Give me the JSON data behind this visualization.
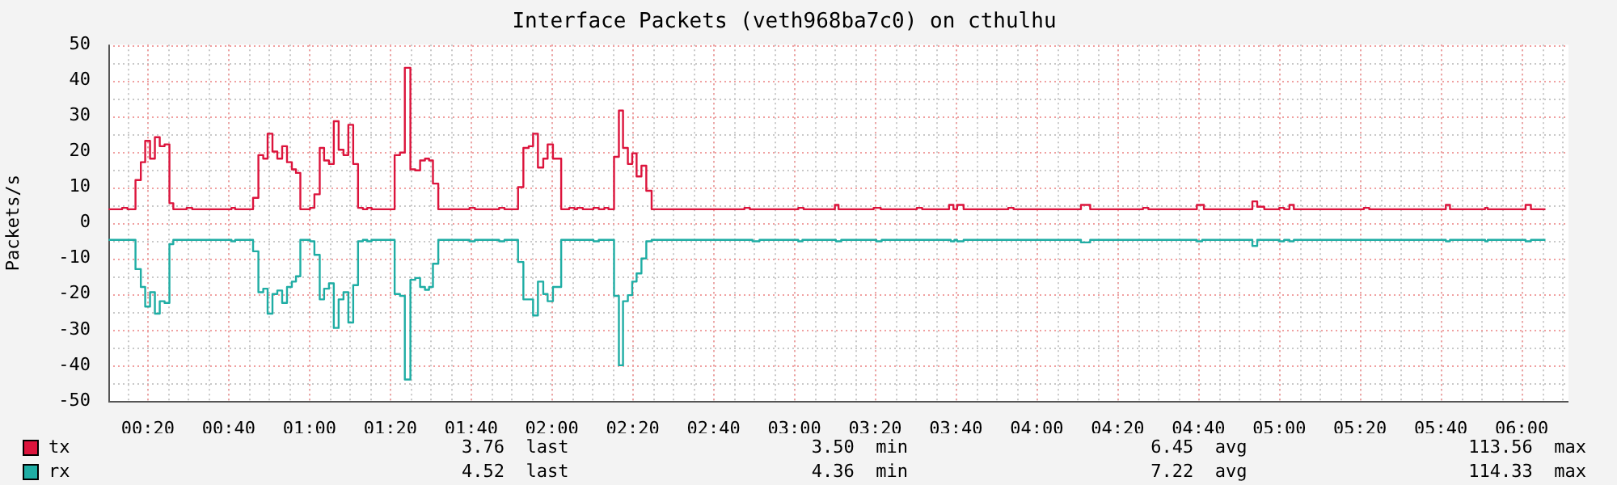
{
  "chart_data": {
    "type": "step",
    "title": "Interface Packets (veth968ba7c0) on cthulhu",
    "ylabel": "Packets/s",
    "xlim": [
      0.17,
      6.193
    ],
    "xticks": [
      {
        "value": 0.3333,
        "label": "00:20"
      },
      {
        "value": 0.6667,
        "label": "00:40"
      },
      {
        "value": 1,
        "label": "01:00"
      },
      {
        "value": 1.3333,
        "label": "01:20"
      },
      {
        "value": 1.6667,
        "label": "01:40"
      },
      {
        "value": 2,
        "label": "02:00"
      },
      {
        "value": 2.3333,
        "label": "02:20"
      },
      {
        "value": 2.6667,
        "label": "02:40"
      },
      {
        "value": 3,
        "label": "03:00"
      },
      {
        "value": 3.3333,
        "label": "03:20"
      },
      {
        "value": 3.6667,
        "label": "03:40"
      },
      {
        "value": 4,
        "label": "04:00"
      },
      {
        "value": 4.3333,
        "label": "04:20"
      },
      {
        "value": 4.6667,
        "label": "04:40"
      },
      {
        "value": 5,
        "label": "05:00"
      },
      {
        "value": 5.3333,
        "label": "05:20"
      },
      {
        "value": 5.6667,
        "label": "05:40"
      },
      {
        "value": 6,
        "label": "06:00"
      }
    ],
    "ylim": [
      -50,
      50
    ],
    "yticks": [
      -50,
      -40,
      -30,
      -20,
      -10,
      0,
      10,
      20,
      30,
      40,
      50
    ],
    "grid": true,
    "legend": "bottom",
    "series": [
      {
        "name": "tx",
        "color": "#dc143c",
        "x": [
          0.171,
          0.227,
          0.249,
          0.282,
          0.304,
          0.322,
          0.342,
          0.362,
          0.382,
          0.402,
          0.422,
          0.438,
          0.493,
          0.516,
          0.678,
          0.693,
          0.767,
          0.789,
          0.809,
          0.827,
          0.847,
          0.867,
          0.887,
          0.907,
          0.927,
          0.944,
          0.962,
          1.002,
          1.02,
          1.042,
          1.06,
          1.08,
          1.1,
          1.12,
          1.14,
          1.16,
          1.18,
          1.2,
          1.22,
          1.238,
          1.256,
          1.351,
          1.373,
          1.393,
          1.416,
          1.436,
          1.456,
          1.476,
          1.493,
          1.509,
          1.531,
          1.66,
          1.682,
          1.782,
          1.804,
          1.86,
          1.882,
          1.904,
          1.922,
          1.942,
          1.964,
          1.982,
          2.004,
          2.038,
          2.071,
          2.093,
          2.104,
          2.127,
          2.171,
          2.193,
          2.216,
          2.233,
          2.256,
          2.276,
          2.293,
          2.313,
          2.331,
          2.349,
          2.369,
          2.389,
          2.411,
          2.794,
          2.816,
          3.016,
          3.038,
          3.167,
          3.182,
          3.327,
          3.356,
          3.505,
          3.527,
          3.638,
          3.656,
          3.671,
          3.698,
          3.882,
          3.904,
          4.182,
          4.22,
          4.438,
          4.46,
          4.66,
          4.689,
          4.889,
          4.909,
          4.938,
          5.0,
          5.02,
          5.042,
          5.06,
          5.349,
          5.371,
          5.687,
          5.704,
          5.849,
          5.86,
          6.016,
          6.038,
          6.098
        ],
        "values": [
          3.8,
          4.2,
          3.8,
          12,
          17,
          23,
          18,
          24,
          21.5,
          22,
          5.5,
          3.8,
          4.2,
          3.8,
          4.2,
          3.8,
          7,
          19,
          18,
          25,
          20,
          18,
          21.5,
          17,
          15,
          14,
          3.8,
          4.2,
          8,
          21,
          17.5,
          16.5,
          28.5,
          20.5,
          19,
          27.5,
          16.5,
          4.2,
          3.8,
          4.2,
          3.8,
          19,
          19.7,
          43.5,
          15,
          14.7,
          17.5,
          18,
          17.5,
          11,
          3.8,
          4.2,
          3.8,
          4.2,
          3.8,
          10,
          21,
          21.5,
          25,
          15.5,
          18,
          22,
          18,
          3.8,
          4.2,
          3.8,
          4.2,
          3.8,
          4.2,
          3.8,
          4.2,
          3.8,
          18.5,
          31.5,
          21,
          16.5,
          19.5,
          13,
          16,
          9,
          3.8,
          4.2,
          3.8,
          4.2,
          3.8,
          5,
          3.8,
          4.2,
          3.8,
          4.2,
          3.8,
          5,
          3.8,
          5,
          3.8,
          4.2,
          3.8,
          5,
          3.8,
          4.2,
          3.8,
          5,
          3.8,
          6,
          4.5,
          3.8,
          4.2,
          3.8,
          5,
          3.8,
          4.2,
          3.8,
          5,
          3.8,
          4.2,
          3.8,
          5,
          3.8,
          3.8
        ]
      },
      {
        "name": "rx",
        "color": "#1fada4",
        "x": [
          0.171,
          0.282,
          0.304,
          0.322,
          0.342,
          0.362,
          0.382,
          0.402,
          0.422,
          0.438,
          0.678,
          0.693,
          0.767,
          0.789,
          0.809,
          0.827,
          0.847,
          0.867,
          0.887,
          0.907,
          0.927,
          0.944,
          0.962,
          1.002,
          1.02,
          1.042,
          1.06,
          1.08,
          1.1,
          1.12,
          1.14,
          1.16,
          1.18,
          1.2,
          1.22,
          1.238,
          1.256,
          1.351,
          1.373,
          1.393,
          1.416,
          1.436,
          1.456,
          1.476,
          1.493,
          1.509,
          1.531,
          1.66,
          1.682,
          1.782,
          1.804,
          1.86,
          1.882,
          1.922,
          1.942,
          1.964,
          1.982,
          2.004,
          2.038,
          2.171,
          2.193,
          2.256,
          2.276,
          2.293,
          2.313,
          2.331,
          2.349,
          2.369,
          2.389,
          2.411,
          2.827,
          2.856,
          3.016,
          3.033,
          3.171,
          3.193,
          3.338,
          3.36,
          3.645,
          3.66,
          3.671,
          3.698,
          4.182,
          4.22,
          4.66,
          4.682,
          4.889,
          4.909,
          5.0,
          5.02,
          5.042,
          5.06,
          5.687,
          5.704,
          5.849,
          5.86,
          6.016,
          6.038,
          6.098
        ],
        "values": [
          -4.8,
          -13,
          -18,
          -23.5,
          -19.5,
          -25.5,
          -22,
          -22.5,
          -6,
          -4.8,
          -5.2,
          -4.8,
          -8,
          -19.5,
          -18.5,
          -25.5,
          -20,
          -19,
          -22.5,
          -18,
          -16.5,
          -15,
          -4.8,
          -5.2,
          -9,
          -21.5,
          -18.5,
          -17,
          -29.5,
          -21.5,
          -19.5,
          -28,
          -17.5,
          -5.2,
          -4.8,
          -5.2,
          -4.8,
          -20,
          -20.5,
          -44,
          -16,
          -15.5,
          -18,
          -18.8,
          -18,
          -11.5,
          -4.8,
          -5.2,
          -4.8,
          -5.2,
          -4.8,
          -11,
          -21.5,
          -26,
          -16.5,
          -20,
          -22,
          -18,
          -4.8,
          -5.2,
          -4.8,
          -20.5,
          -40,
          -22,
          -20.3,
          -16.5,
          -14.2,
          -10,
          -5.2,
          -4.8,
          -5.2,
          -4.8,
          -5.2,
          -4.8,
          -5.2,
          -4.8,
          -5.2,
          -4.8,
          -5.2,
          -4.8,
          -5.2,
          -4.8,
          -5.5,
          -4.8,
          -5.2,
          -4.8,
          -6.5,
          -4.8,
          -5.2,
          -4.8,
          -5.2,
          -4.8,
          -5.2,
          -4.8,
          -5.2,
          -4.8,
          -5.2,
          -4.8,
          -4.8
        ]
      }
    ],
    "annotations": [
      "3.76  last",
      "3.50  min",
      "6.45  avg",
      "113.56  max",
      "4.52  last",
      "4.36  min",
      "7.22  avg",
      "114.33  max"
    ]
  }
}
